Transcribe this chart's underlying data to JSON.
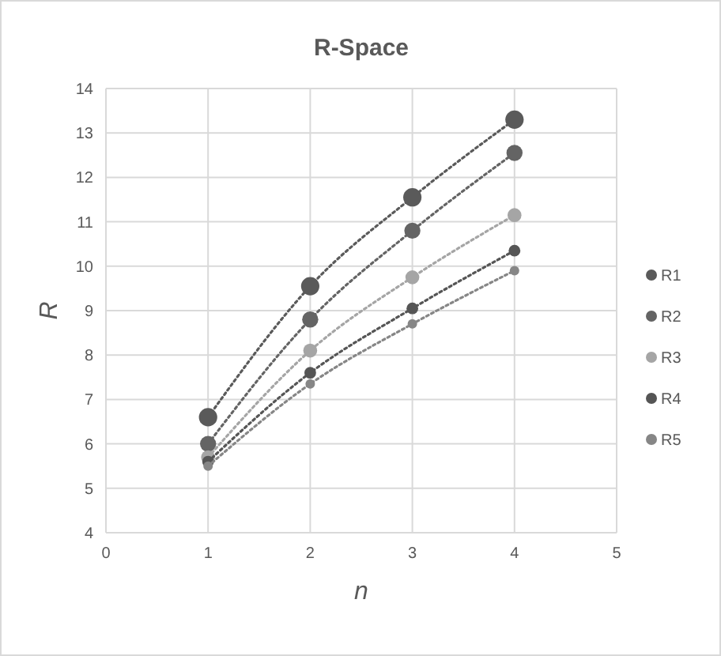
{
  "chart_data": {
    "type": "line",
    "title": "R-Space",
    "xlabel": "n",
    "ylabel": "R",
    "x": [
      1,
      2,
      3,
      4
    ],
    "series": [
      {
        "name": "R1",
        "color": "#5a5a5a",
        "values": [
          6.6,
          9.55,
          11.55,
          13.3
        ]
      },
      {
        "name": "R2",
        "color": "#646464",
        "values": [
          6.0,
          8.8,
          10.8,
          12.55
        ]
      },
      {
        "name": "R3",
        "color": "#a5a5a5",
        "values": [
          5.7,
          8.1,
          9.75,
          11.15
        ]
      },
      {
        "name": "R4",
        "color": "#555555",
        "values": [
          5.6,
          7.6,
          9.05,
          10.35
        ]
      },
      {
        "name": "R5",
        "color": "#868686",
        "values": [
          5.5,
          7.35,
          8.7,
          9.9
        ]
      }
    ],
    "xlim": [
      0,
      5
    ],
    "xticks": [
      0,
      1,
      2,
      3,
      4,
      5
    ],
    "ylim": [
      4,
      14
    ],
    "yticks": [
      4,
      5,
      6,
      7,
      8,
      9,
      10,
      11,
      12,
      13,
      14
    ],
    "grid": true,
    "legend": "right",
    "marker": "circle",
    "line_style": "dotted"
  }
}
